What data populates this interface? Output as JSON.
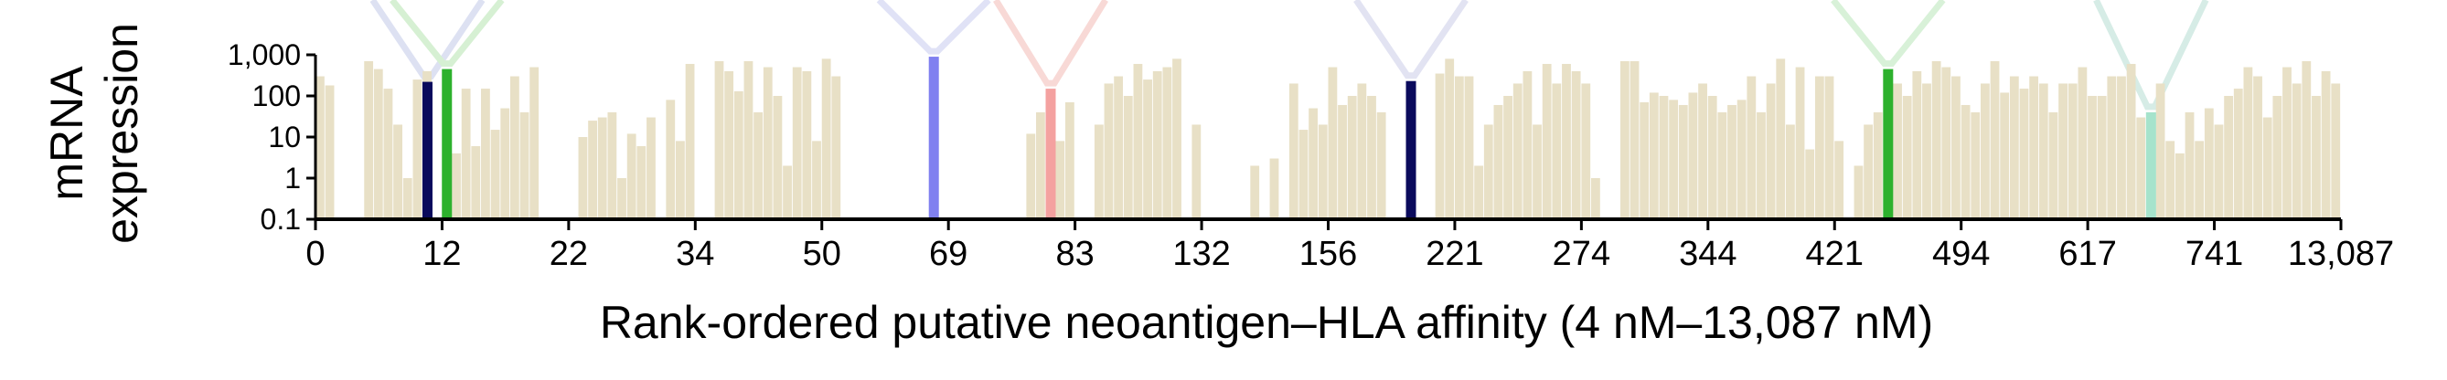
{
  "chart_data": {
    "type": "bar",
    "xlabel": "Rank-ordered putative neoantigen–HLA affinity (4 nM–13,087 nM)",
    "ylabel_lines": [
      "mRNA",
      "expression"
    ],
    "yscale": "log",
    "ylim": [
      0.1,
      1000
    ],
    "yticks": [
      {
        "value": 0.1,
        "label": "0.1"
      },
      {
        "value": 1,
        "label": "1"
      },
      {
        "value": 10,
        "label": "10"
      },
      {
        "value": 100,
        "label": "100"
      },
      {
        "value": 1000,
        "label": "1,000"
      }
    ],
    "xticks": [
      "0",
      "12",
      "22",
      "34",
      "50",
      "69",
      "83",
      "132",
      "156",
      "221",
      "274",
      "344",
      "421",
      "494",
      "617",
      "741",
      "13,087"
    ],
    "bar_color": "#e8e0c6",
    "values": [
      300,
      180,
      0,
      0,
      0,
      700,
      450,
      150,
      20,
      1,
      250,
      400,
      0,
      120,
      4,
      150,
      6,
      150,
      15,
      50,
      300,
      40,
      500,
      0,
      0,
      0,
      0,
      10,
      25,
      30,
      40,
      1,
      12,
      6,
      30,
      0,
      80,
      8,
      600,
      0,
      0,
      700,
      400,
      130,
      700,
      40,
      500,
      100,
      2,
      500,
      400,
      8,
      800,
      300,
      0,
      0,
      0,
      0,
      0,
      0,
      0,
      0,
      0,
      0,
      0,
      0,
      0,
      0,
      0,
      0,
      0,
      0,
      0,
      12,
      40,
      10,
      8,
      70,
      0,
      0,
      20,
      200,
      300,
      100,
      600,
      250,
      400,
      500,
      800,
      0,
      20,
      0,
      0,
      0,
      0,
      0,
      2,
      0,
      3,
      0,
      200,
      15,
      50,
      20,
      500,
      60,
      100,
      200,
      100,
      40,
      0,
      0,
      0,
      0,
      0,
      350,
      800,
      300,
      300,
      2,
      20,
      60,
      100,
      200,
      400,
      20,
      600,
      200,
      600,
      400,
      200,
      1,
      0,
      0,
      700,
      700,
      70,
      120,
      100,
      80,
      60,
      120,
      200,
      100,
      40,
      60,
      80,
      300,
      40,
      200,
      800,
      20,
      500,
      5,
      300,
      300,
      8,
      0,
      2,
      20,
      40,
      80,
      200,
      100,
      400,
      200,
      700,
      500,
      300,
      60,
      40,
      200,
      700,
      120,
      300,
      150,
      300,
      200,
      40,
      200,
      200,
      500,
      100,
      100,
      300,
      300,
      600,
      30,
      5,
      200,
      8,
      4,
      40,
      8,
      50,
      20,
      100,
      150,
      500,
      300,
      30,
      100,
      500,
      200,
      700,
      100,
      400,
      200
    ],
    "highlights": [
      {
        "index": 11,
        "value": 220,
        "color": "#0a0a5c"
      },
      {
        "index": 13,
        "value": 450,
        "color": "#2db12d"
      },
      {
        "index": 63,
        "value": 900,
        "color": "#8080f0"
      },
      {
        "index": 75,
        "value": 150,
        "color": "#f4a1a0"
      },
      {
        "index": 112,
        "value": 230,
        "color": "#0a0a5c"
      },
      {
        "index": 161,
        "value": 450,
        "color": "#2db12d"
      },
      {
        "index": 188,
        "value": 40,
        "color": "#a6e3cc"
      }
    ],
    "connector_colors": [
      "#dde1f2",
      "#d6f0d3",
      "#e0e2f6",
      "#f8d9d6",
      "#e2e3f2",
      "#d8f1d8",
      "#d6ece6"
    ]
  }
}
